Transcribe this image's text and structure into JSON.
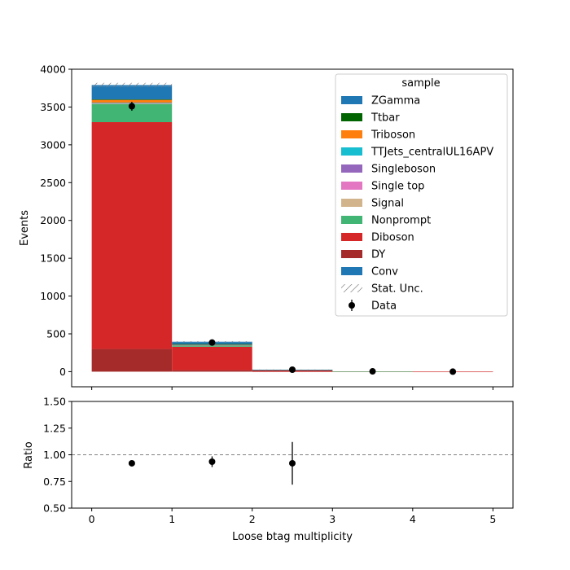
{
  "chart_data": {
    "type": "bar",
    "stacked": true,
    "x_bin_edges": [
      0,
      1,
      2,
      3,
      4,
      5
    ],
    "xlabel": "Loose btag multiplicity",
    "xticks": [
      "0",
      "1",
      "2",
      "3",
      "4",
      "5"
    ],
    "xlim": [
      -0.25,
      5.25
    ],
    "main_panel": {
      "ylabel": "Events",
      "ylim": [
        -200,
        4000
      ],
      "yticks": [
        "0",
        "500",
        "1000",
        "1500",
        "2000",
        "2500",
        "3000",
        "3500",
        "4000"
      ],
      "stack_order_bottom_to_top": [
        "DY",
        "Diboson",
        "Nonprompt",
        "Signal",
        "Single top",
        "Singleboson",
        "TTJets_centralUL16APV",
        "Triboson",
        "Ttbar",
        "ZGamma",
        "Conv"
      ],
      "series": [
        {
          "name": "DY",
          "color": "#a52a2a",
          "values": [
            300,
            20,
            3,
            0.3,
            0.1
          ]
        },
        {
          "name": "Diboson",
          "color": "#d62728",
          "values": [
            3000,
            310,
            18,
            0.5,
            0.1
          ]
        },
        {
          "name": "Nonprompt",
          "color": "#41b574",
          "values": [
            240,
            20,
            2,
            0.1,
            0
          ]
        },
        {
          "name": "Signal",
          "color": "#d2b48c",
          "values": [
            10,
            2,
            0.2,
            0,
            0
          ]
        },
        {
          "name": "Single top",
          "color": "#e377c2",
          "values": [
            2,
            2,
            0.3,
            0,
            0
          ]
        },
        {
          "name": "Singleboson",
          "color": "#9467bd",
          "values": [
            3,
            0.5,
            0,
            0,
            0
          ]
        },
        {
          "name": "TTJets_centralUL16APV",
          "color": "#17becf",
          "values": [
            3,
            4,
            0.5,
            0,
            0
          ]
        },
        {
          "name": "Triboson",
          "color": "#ff7f0e",
          "values": [
            40,
            4,
            0.3,
            0,
            0
          ]
        },
        {
          "name": "Ttbar",
          "color": "#006400",
          "values": [
            2,
            3,
            0.5,
            0,
            0
          ]
        },
        {
          "name": "ZGamma",
          "color": "#1f77b4",
          "values": [
            170,
            20,
            1,
            0,
            0
          ]
        },
        {
          "name": "Conv",
          "color": "#1f77b4",
          "values": [
            20,
            10,
            0.5,
            0,
            0
          ]
        }
      ],
      "stat_unc_halfwidth": [
        30,
        8,
        2,
        0,
        0
      ],
      "data": {
        "name": "Data",
        "x": [
          0.5,
          1.5,
          2.5,
          3.5,
          4.5
        ],
        "y": [
          3510,
          385,
          26,
          4,
          0
        ],
        "yerr": [
          59,
          20,
          5,
          2,
          0
        ]
      }
    },
    "ratio_panel": {
      "ylabel": "Ratio",
      "ylim": [
        0.5,
        1.5
      ],
      "yticks": [
        "0.50",
        "0.75",
        "1.00",
        "1.25",
        "1.50"
      ],
      "reference_line": 1.0,
      "points": {
        "x": [
          0.5,
          1.5,
          2.5
        ],
        "y": [
          0.92,
          0.935,
          0.92
        ],
        "yerr": [
          0.016,
          0.05,
          0.2
        ]
      }
    },
    "legend": {
      "title": "sample",
      "placement": "top-right",
      "entries": [
        {
          "label": "ZGamma",
          "color": "#1f77b4",
          "kind": "patch"
        },
        {
          "label": "Ttbar",
          "color": "#006400",
          "kind": "patch"
        },
        {
          "label": "Triboson",
          "color": "#ff7f0e",
          "kind": "patch"
        },
        {
          "label": "TTJets_centralUL16APV",
          "color": "#17becf",
          "kind": "patch"
        },
        {
          "label": "Singleboson",
          "color": "#9467bd",
          "kind": "patch"
        },
        {
          "label": "Single top",
          "color": "#e377c2",
          "kind": "patch"
        },
        {
          "label": "Signal",
          "color": "#d2b48c",
          "kind": "patch"
        },
        {
          "label": "Nonprompt",
          "color": "#41b574",
          "kind": "patch"
        },
        {
          "label": "Diboson",
          "color": "#d62728",
          "kind": "patch"
        },
        {
          "label": "DY",
          "color": "#a52a2a",
          "kind": "patch"
        },
        {
          "label": "Conv",
          "color": "#1f77b4",
          "kind": "patch"
        },
        {
          "label": "Stat. Unc.",
          "color": "#888888",
          "kind": "hatch"
        },
        {
          "label": "Data",
          "color": "#000000",
          "kind": "errorbar"
        }
      ]
    }
  }
}
